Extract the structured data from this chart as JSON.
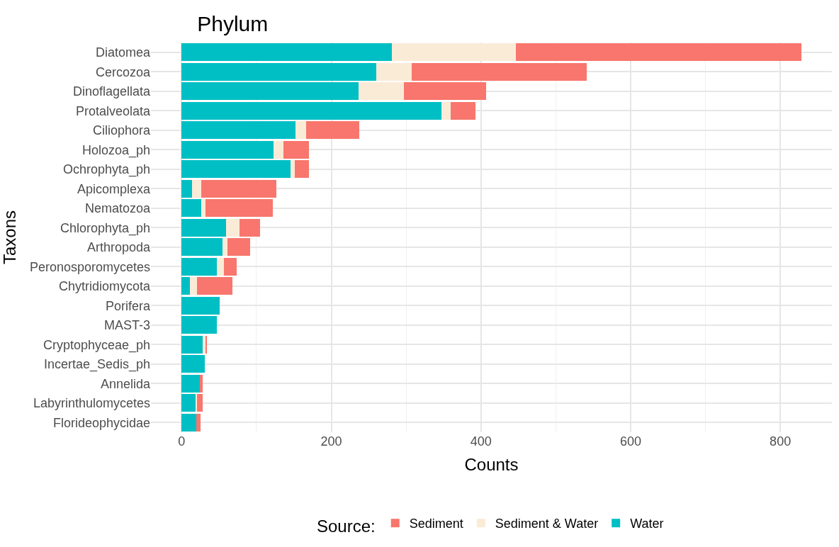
{
  "chart_data": {
    "type": "bar",
    "orientation": "horizontal",
    "stacked": true,
    "title": "Phylum",
    "xlabel": "Counts",
    "ylabel": "Taxons",
    "legend_title": "Source:",
    "legend": "bottom",
    "grid": true,
    "categories": [
      "Diatomea",
      "Cercozoa",
      "Dinoflagellata",
      "Protalveolata",
      "Ciliophora",
      "Holozoa_ph",
      "Ochrophyta_ph",
      "Apicomplexa",
      "Nematozoa",
      "Chlorophyta_ph",
      "Arthropoda",
      "Peronosporomycetes",
      "Chytridiomycota",
      "Porifera",
      "MAST-3",
      "Cryptophyceae_ph",
      "Incertae_Sedis_ph",
      "Annelida",
      "Labyrinthulomycetes",
      "Florideophycidae"
    ],
    "xlim": [
      -41,
      869
    ],
    "xticks": [
      0,
      200,
      400,
      600,
      800
    ],
    "series": [
      {
        "name": "Water",
        "color": "#00bfc4",
        "values": [
          281,
          260,
          236,
          347,
          152,
          123,
          146,
          14,
          26,
          59,
          55,
          47,
          11,
          51,
          47,
          28,
          31,
          24,
          19,
          20
        ]
      },
      {
        "name": "Sediment & Water",
        "color": "#faebd7",
        "values": [
          166,
          47,
          61,
          13,
          14,
          13,
          5,
          12,
          6,
          18,
          6,
          10,
          10,
          0,
          0,
          4,
          0,
          0,
          2,
          null
        ]
      },
      {
        "name": "Sediment",
        "color": "#f8766d",
        "values": [
          381,
          234,
          110,
          33,
          71,
          34,
          19,
          101,
          90,
          28,
          31,
          17,
          47,
          0,
          0,
          2,
          0,
          4,
          7,
          5
        ]
      }
    ]
  }
}
